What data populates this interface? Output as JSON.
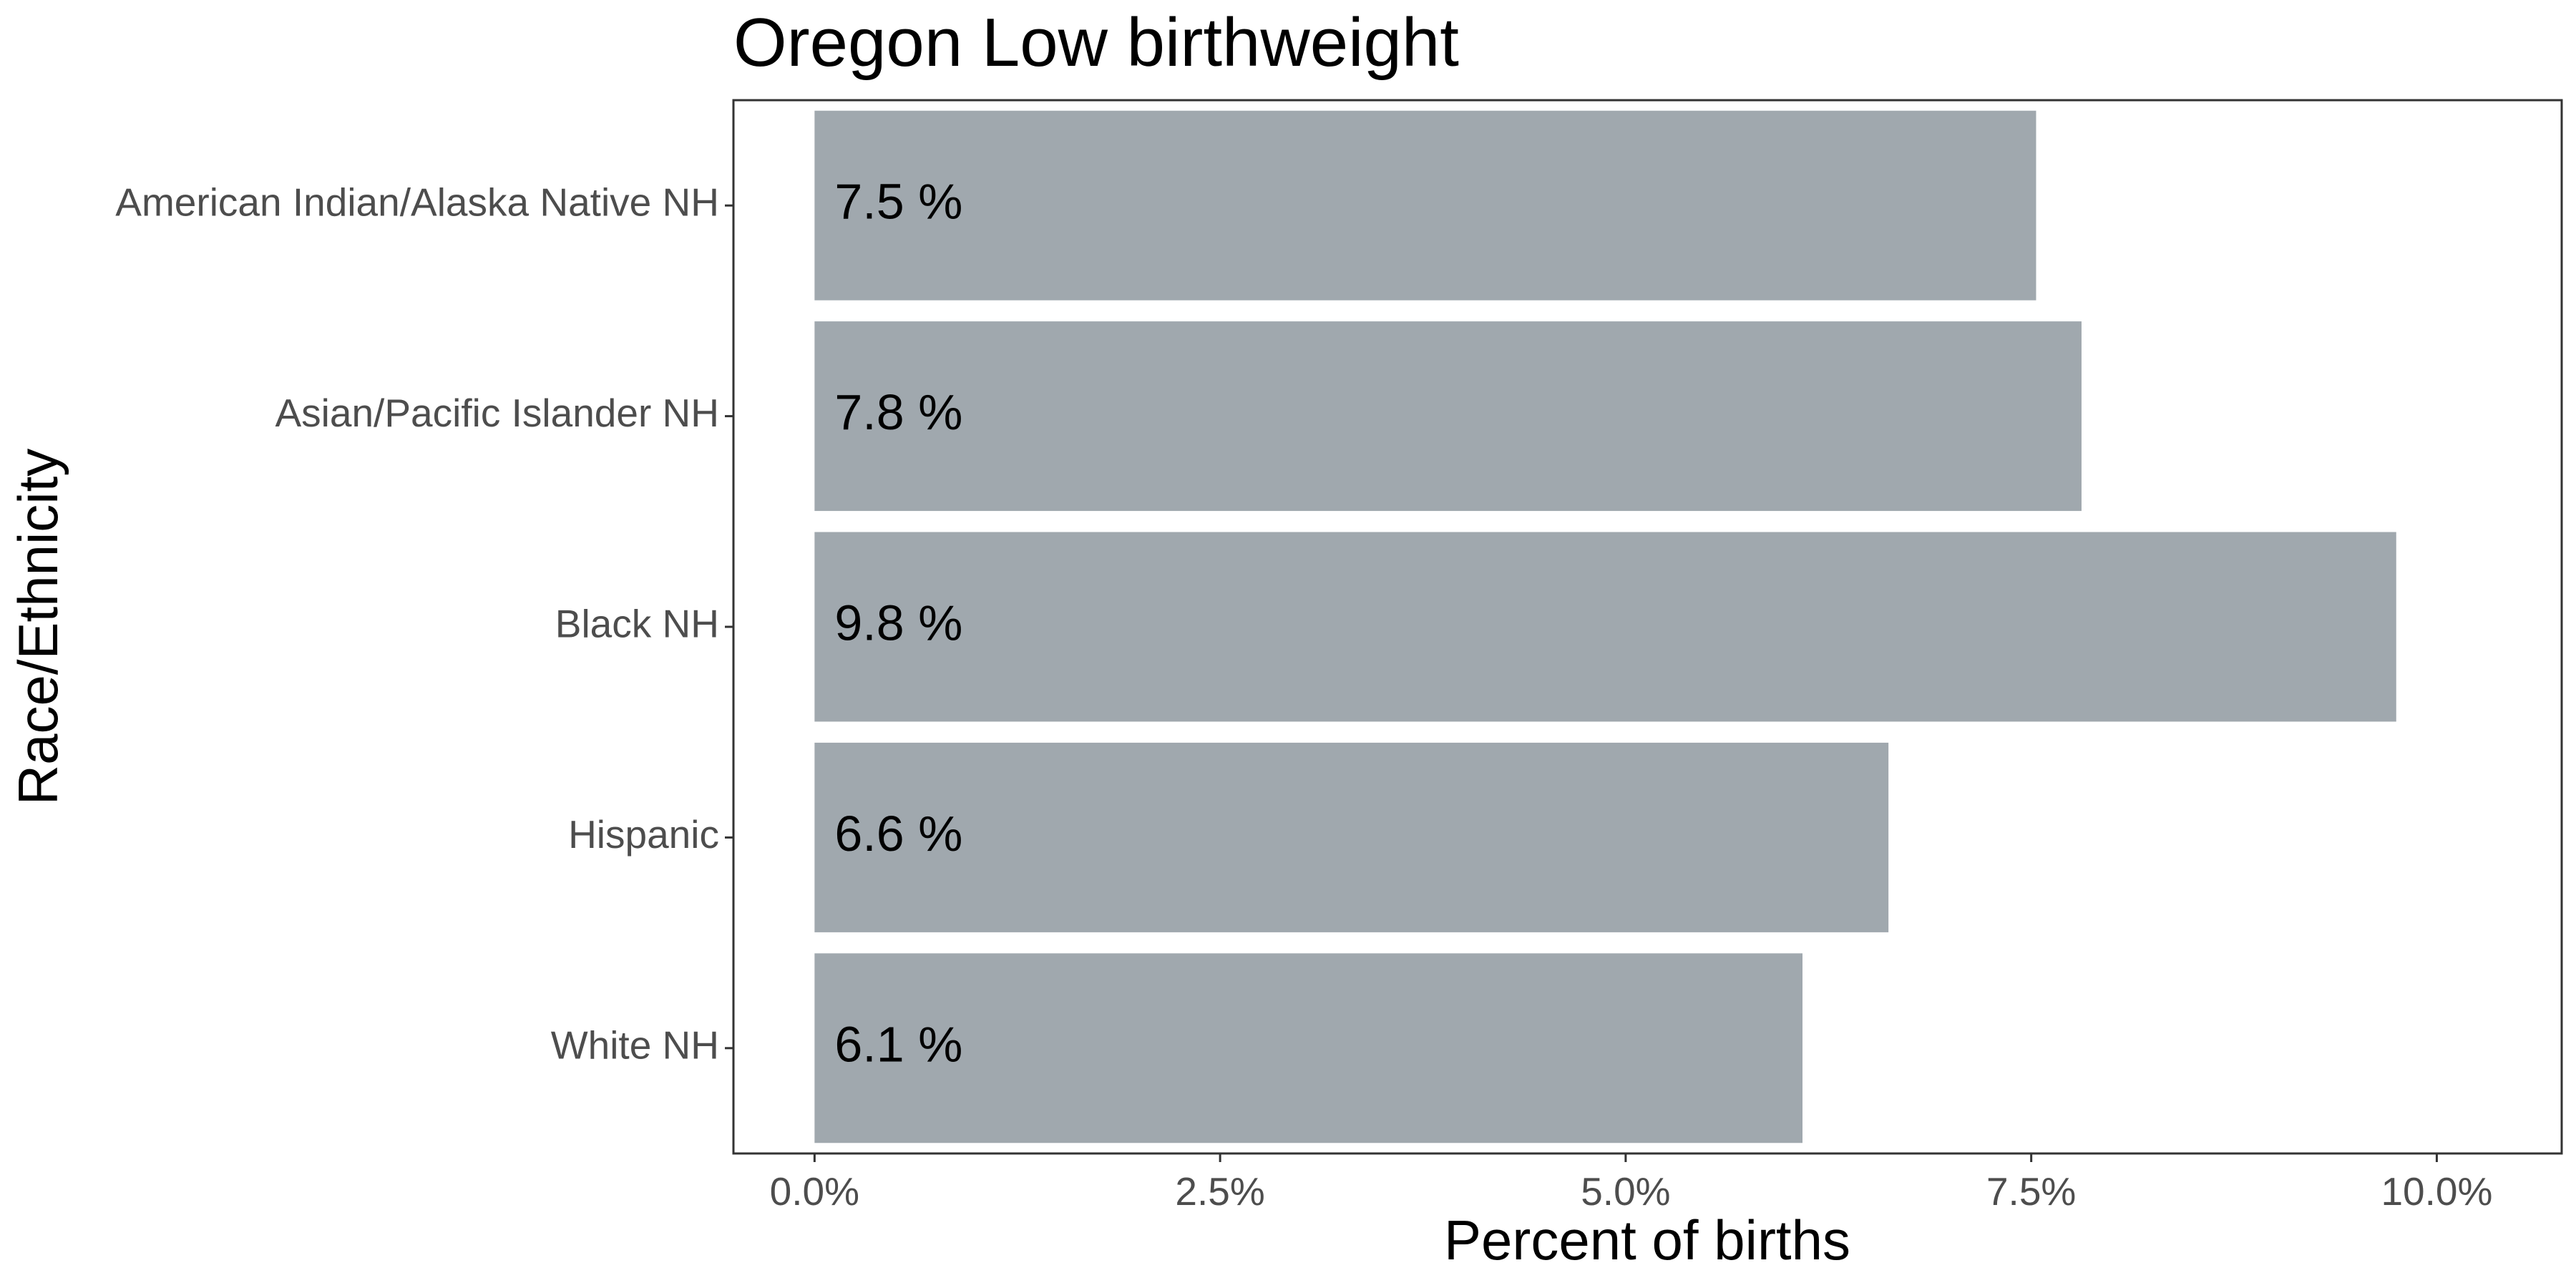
{
  "chart_data": {
    "type": "bar",
    "orientation": "horizontal",
    "title": "Oregon Low birthweight",
    "xlabel": "Percent of births",
    "ylabel": "Race/Ethnicity",
    "categories": [
      "American Indian/Alaska Native NH",
      "Asian/Pacific Islander NH",
      "Black NH",
      "Hispanic",
      "White NH"
    ],
    "values": [
      7.53,
      7.81,
      9.75,
      6.62,
      6.09
    ],
    "data_labels": [
      "7.5 %",
      "7.8 %",
      "9.8 %",
      "6.6 %",
      "6.1 %"
    ],
    "x_ticks": [
      0,
      2.5,
      5,
      7.5,
      10
    ],
    "x_tick_labels": [
      "0.0%",
      "2.5%",
      "5.0%",
      "7.5%",
      "10.0%"
    ],
    "xlim": [
      -0.5,
      10.77
    ],
    "grid": false,
    "legend": "none",
    "colors": {
      "bar": "#a0a8ae",
      "panel_border": "#333333",
      "tick": "#333333",
      "tick_label": "#4d4d4d"
    }
  }
}
